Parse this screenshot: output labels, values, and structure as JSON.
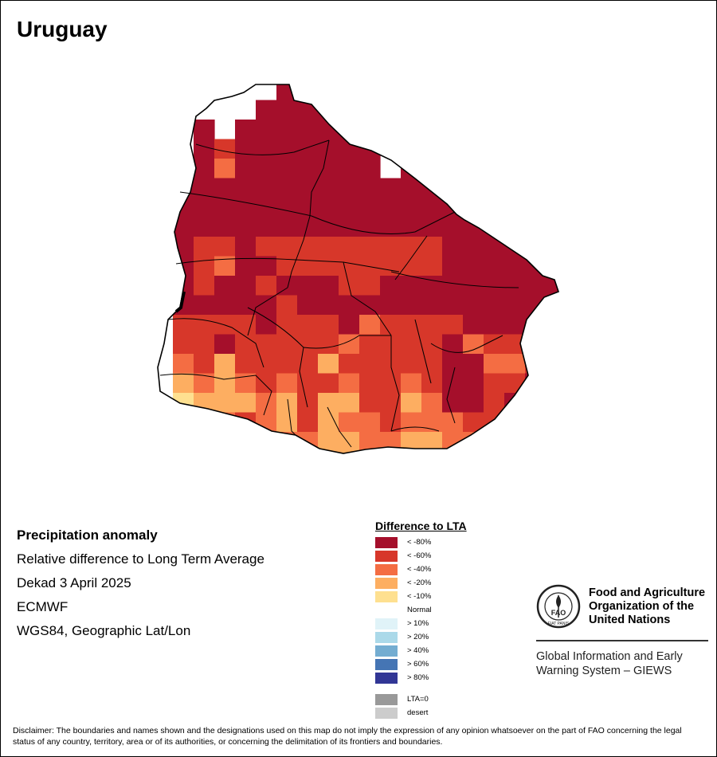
{
  "title": "Uruguay",
  "info": {
    "heading": "Precipitation anomaly",
    "line1": "Relative difference to Long Term Average",
    "line2": "Dekad 3 April 2025",
    "line3": "ECMWF",
    "line4": "WGS84, Geographic Lat/Lon"
  },
  "legend": {
    "title": "Difference to LTA",
    "items": [
      {
        "label": "< -80%",
        "color": "#a50f2b"
      },
      {
        "label": "< -60%",
        "color": "#d7372a"
      },
      {
        "label": "< -40%",
        "color": "#f46d43"
      },
      {
        "label": "< -20%",
        "color": "#fdae61"
      },
      {
        "label": "< -10%",
        "color": "#fee090"
      },
      {
        "label": "Normal",
        "color": "#ffffff"
      },
      {
        "label": "> 10%",
        "color": "#e0f3f8"
      },
      {
        "label": "> 20%",
        "color": "#abd9e9"
      },
      {
        "label": "> 40%",
        "color": "#74add1"
      },
      {
        "label": "> 60%",
        "color": "#4575b4"
      },
      {
        "label": "> 80%",
        "color": "#313695"
      }
    ],
    "extra": [
      {
        "label": "LTA=0",
        "color": "#999999"
      },
      {
        "label": "desert",
        "color": "#cccccc"
      }
    ]
  },
  "fao": {
    "org_line1": "Food and Agriculture",
    "org_line2": "Organization of the",
    "org_line3": "United Nations",
    "logo_letters": "FAO",
    "logo_motto": "FIAT PANIS",
    "system_line1": "Global Information and Early",
    "system_line2": "Warning System – GIEWS"
  },
  "disclaimer": "Disclaimer: The boundaries and names shown and the designations used on this map do not imply the expression of any opinion whatsoever on the part of FAO concerning the legal status of any country, territory, area or of its authorities, or concerning the delimitation of its frontiers and boundaries.",
  "map": {
    "region": "Uruguay",
    "class_colors": {
      "1": "#a50f2b",
      "2": "#d7372a",
      "3": "#f46d43",
      "4": "#fdae61",
      "5": "#fee090"
    },
    "grid_classes": [
      "00000011000000000000",
      "00000111110000000000",
      "00101111111000000000",
      "00121111111011000000",
      "00131111111011100000",
      "01111111111111110000",
      "01111111111111111000",
      "01111111111111111100",
      "01221222222222111100",
      "01231122222222111111",
      "01211211122111111111",
      "01111121111111111111",
      "02222122213222211111",
      "02212222232222132211",
      "03242222422222113321",
      "04343232232232112211",
      "05444342442243112111",
      "00432342433233322220",
      "00003333443344333300",
      "00000003444223322000"
    ]
  }
}
